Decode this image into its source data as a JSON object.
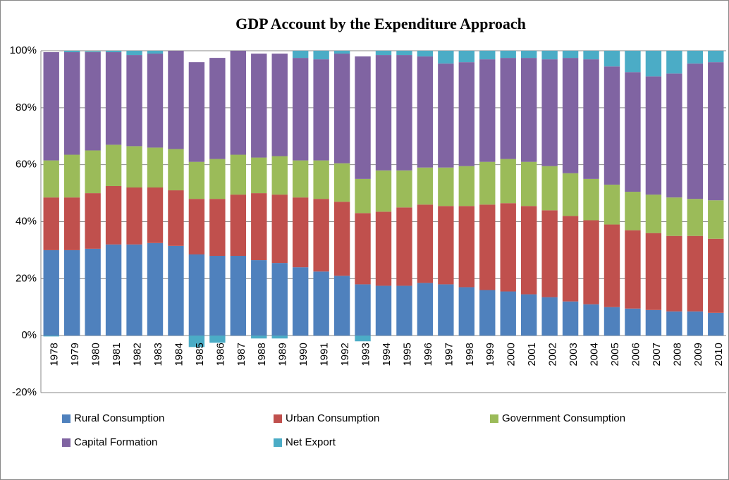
{
  "chart_data": {
    "type": "stacked_bar",
    "title": "GDP Account by the Expenditure Approach",
    "categories": [
      "1978",
      "1979",
      "1980",
      "1981",
      "1982",
      "1983",
      "1984",
      "1985",
      "1986",
      "1987",
      "1988",
      "1989",
      "1990",
      "1991",
      "1992",
      "1993",
      "1994",
      "1995",
      "1996",
      "1997",
      "1998",
      "1999",
      "2000",
      "2001",
      "2002",
      "2003",
      "2004",
      "2005",
      "2006",
      "2007",
      "2008",
      "2009",
      "2010"
    ],
    "series": [
      {
        "name": "Rural Consumption",
        "color": "#4f81bd",
        "values": [
          30,
          30,
          30.5,
          32,
          32,
          32.5,
          31.5,
          28.5,
          28,
          28,
          26.5,
          25.5,
          24,
          22.5,
          21,
          18,
          17.5,
          17.5,
          18.5,
          18,
          17,
          16,
          15.5,
          14.5,
          13.5,
          12,
          11,
          10,
          9.5,
          9,
          8.5,
          8.5,
          8
        ]
      },
      {
        "name": "Urban Consumption",
        "color": "#c0504d",
        "values": [
          18.5,
          18.5,
          19.5,
          20.5,
          20,
          19.5,
          19.5,
          19.5,
          20,
          21.5,
          23.5,
          24,
          24.5,
          25.5,
          26,
          25,
          26,
          27.5,
          27.5,
          27.5,
          28.5,
          30,
          31,
          31,
          30.5,
          30,
          29.5,
          29,
          27.5,
          27,
          26.5,
          26.5,
          26
        ]
      },
      {
        "name": "Government Consumption",
        "color": "#9bbb59",
        "values": [
          13,
          15,
          15,
          14.5,
          14.5,
          14,
          14.5,
          13,
          14,
          14,
          12.5,
          13.5,
          13,
          13.5,
          13.5,
          12,
          14.5,
          13,
          13,
          13.5,
          14,
          15,
          15.5,
          15.5,
          15.5,
          15,
          14.5,
          14,
          13.5,
          13.5,
          13.5,
          13,
          13.5
        ]
      },
      {
        "name": "Capital Formation",
        "color": "#8064a2",
        "values": [
          38,
          36,
          34.5,
          32.5,
          32,
          33,
          34.5,
          35,
          35.5,
          36.5,
          36.5,
          36,
          36,
          35.5,
          38.5,
          43,
          40.5,
          40.5,
          39,
          36.5,
          36.5,
          36,
          35.5,
          36.5,
          37.5,
          40.5,
          42,
          41.5,
          42,
          41.5,
          43.5,
          47.5,
          48.5
        ]
      },
      {
        "name": "Net Export",
        "color": "#4bacc6",
        "values": [
          -0.3,
          0.5,
          0.3,
          0.5,
          1.5,
          1,
          0,
          -4,
          -2.5,
          0,
          -1,
          -1,
          2.5,
          3,
          1,
          -2,
          1.5,
          1.5,
          2,
          4.5,
          4,
          3,
          2.5,
          2.5,
          3,
          2.5,
          3,
          5.5,
          7.5,
          9,
          8,
          4.5,
          4
        ]
      }
    ],
    "ylim": [
      -20,
      100
    ],
    "yticks": [
      {
        "value": -20,
        "label": "-20%"
      },
      {
        "value": 0,
        "label": "0%"
      },
      {
        "value": 20,
        "label": "20%"
      },
      {
        "value": 40,
        "label": "40%"
      },
      {
        "value": 60,
        "label": "60%"
      },
      {
        "value": 80,
        "label": "80%"
      },
      {
        "value": 100,
        "label": "100%"
      }
    ],
    "grid": true,
    "legend": "bottom"
  }
}
